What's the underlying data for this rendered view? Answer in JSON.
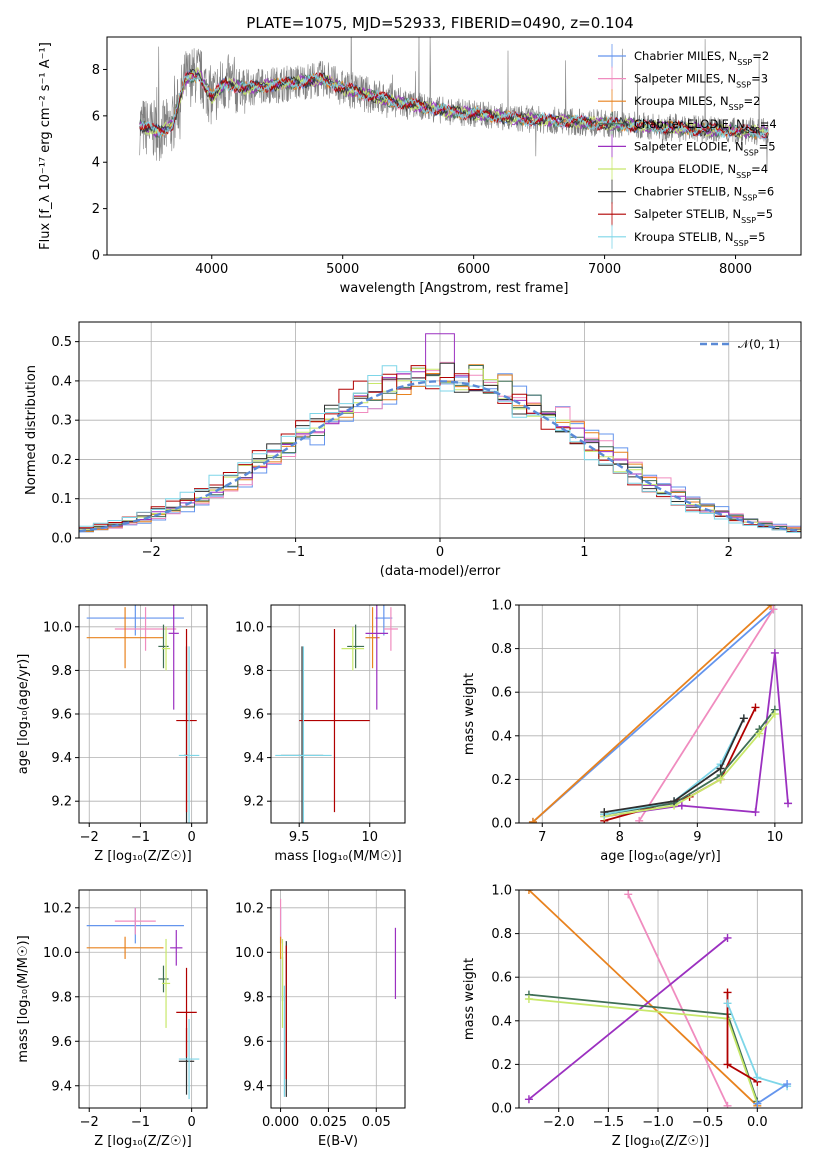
{
  "chart_data": [
    {
      "type": "line",
      "title": "PLATE=1075, MJD=52933, FIBERID=0490, z=0.104",
      "xlabel": "wavelength [Angstrom, rest frame]",
      "ylabel": "Flux [f_λ 10⁻¹⁷ erg cm⁻² s⁻¹ A⁻¹]",
      "xlim": [
        3200,
        8500
      ],
      "ylim": [
        0,
        9.4
      ],
      "xticks": [
        4000,
        5000,
        6000,
        7000,
        8000
      ],
      "yticks": [
        0,
        2,
        4,
        6,
        8
      ],
      "grid": false,
      "legend_position": "upper-right",
      "legend": [
        {
          "label": "Chabrier MILES, N",
          "sub": "SSP",
          "suffix": "=2",
          "color": "#6495ed"
        },
        {
          "label": "Salpeter MILES, N",
          "sub": "SSP",
          "suffix": "=3",
          "color": "#f08cbf"
        },
        {
          "label": "Kroupa MILES, N",
          "sub": "SSP",
          "suffix": "=2",
          "color": "#e8821e"
        },
        {
          "label": "Chabrier ELODIE, N",
          "sub": "SSP",
          "suffix": "=4",
          "color": "#3f6e55"
        },
        {
          "label": "Salpeter ELODIE, N",
          "sub": "SSP",
          "suffix": "=5",
          "color": "#9b30c0"
        },
        {
          "label": "Kroupa ELODIE, N",
          "sub": "SSP",
          "suffix": "=4",
          "color": "#c8e86a"
        },
        {
          "label": "Chabrier STELIB, N",
          "sub": "SSP",
          "suffix": "=6",
          "color": "#2f2f2f"
        },
        {
          "label": "Salpeter STELIB, N",
          "sub": "SSP",
          "suffix": "=5",
          "color": "#b00000"
        },
        {
          "label": "Kroupa STELIB, N",
          "sub": "SSP",
          "suffix": "=5",
          "color": "#7ed6e8"
        }
      ],
      "data_color": "#808080",
      "continuum_points": [
        [
          3450,
          5.6
        ],
        [
          3600,
          5.3
        ],
        [
          3700,
          5.6
        ],
        [
          3800,
          7.6
        ],
        [
          3900,
          7.8
        ],
        [
          4000,
          6.8
        ],
        [
          4100,
          7.4
        ],
        [
          4250,
          7.2
        ],
        [
          4400,
          7.3
        ],
        [
          4600,
          7.4
        ],
        [
          4850,
          7.6
        ],
        [
          5000,
          7.2
        ],
        [
          5200,
          6.9
        ],
        [
          5400,
          6.6
        ],
        [
          5600,
          6.4
        ],
        [
          5800,
          6.2
        ],
        [
          6000,
          6.1
        ],
        [
          6300,
          5.9
        ],
        [
          6600,
          5.8
        ],
        [
          6900,
          5.7
        ],
        [
          7200,
          5.6
        ],
        [
          7500,
          5.5
        ],
        [
          7800,
          5.4
        ],
        [
          8000,
          5.35
        ],
        [
          8250,
          5.3
        ]
      ]
    },
    {
      "type": "histogram",
      "xlabel": "(data-model)/error",
      "ylabel": "Normed distribution",
      "xlim": [
        -2.5,
        2.5
      ],
      "ylim": [
        0,
        0.55
      ],
      "xticks": [
        -2,
        -1,
        0,
        1,
        2
      ],
      "yticks": [
        0.0,
        0.1,
        0.2,
        0.3,
        0.4,
        0.5
      ],
      "grid": true,
      "bin_width": 0.1,
      "reference_curve": {
        "label": "𝒩(0, 1)",
        "color": "#5a8ad6",
        "mean": 0,
        "sigma": 1
      },
      "peak_values": [
        0.45,
        0.42,
        0.46,
        0.44,
        0.52,
        0.43,
        0.45,
        0.41,
        0.43
      ]
    },
    {
      "type": "scatter",
      "xlabel": "Z [log₁₀(Z/Z☉)]",
      "ylabel": "age  [log₁₀(age/yr)]",
      "xlim": [
        -2.2,
        0.3
      ],
      "ylim": [
        9.1,
        10.1
      ],
      "xticks": [
        -2,
        -1,
        0
      ],
      "yticks": [
        9.2,
        9.4,
        9.6,
        9.8,
        10.0
      ],
      "points": [
        {
          "x": -1.1,
          "y": 10.04,
          "xerr": 0.95,
          "yerr": 0.08,
          "color": "#6495ed"
        },
        {
          "x": -0.9,
          "y": 9.99,
          "xerr": 0.6,
          "yerr": 0.1,
          "color": "#f08cbf"
        },
        {
          "x": -1.3,
          "y": 9.95,
          "xerr": 0.75,
          "yerr": 0.14,
          "color": "#e8821e"
        },
        {
          "x": -0.55,
          "y": 9.91,
          "xerr": 0.1,
          "yerr": 0.1,
          "color": "#3f6e55"
        },
        {
          "x": -0.35,
          "y": 9.97,
          "xerr": 0.1,
          "yerr": 0.35,
          "color": "#9b30c0"
        },
        {
          "x": -0.5,
          "y": 9.9,
          "xerr": 0.08,
          "yerr": 0.1,
          "color": "#c8e86a"
        },
        {
          "x": -0.1,
          "y": 9.41,
          "xerr": 0.05,
          "yerr": 0.5,
          "color": "#2f2f2f"
        },
        {
          "x": -0.1,
          "y": 9.57,
          "xerr": 0.2,
          "yerr": 0.42,
          "color": "#b00000"
        },
        {
          "x": -0.05,
          "y": 9.41,
          "xerr": 0.2,
          "yerr": 0.5,
          "color": "#7ed6e8"
        }
      ]
    },
    {
      "type": "scatter",
      "xlabel": "mass [log₁₀(M/M☉)]",
      "ylabel": "",
      "xlim": [
        9.3,
        10.25
      ],
      "ylim": [
        9.1,
        10.1
      ],
      "xticks": [
        9.5,
        10.0
      ],
      "yticks": [
        9.2,
        9.4,
        9.6,
        9.8,
        10.0
      ],
      "points": [
        {
          "x": 10.1,
          "y": 10.04,
          "xerr": 0.06,
          "yerr": 0.08,
          "color": "#6495ed"
        },
        {
          "x": 10.15,
          "y": 9.99,
          "xerr": 0.05,
          "yerr": 0.1,
          "color": "#f08cbf"
        },
        {
          "x": 10.02,
          "y": 9.95,
          "xerr": 0.05,
          "yerr": 0.14,
          "color": "#e8821e"
        },
        {
          "x": 9.9,
          "y": 9.91,
          "xerr": 0.06,
          "yerr": 0.1,
          "color": "#3f6e55"
        },
        {
          "x": 10.05,
          "y": 9.97,
          "xerr": 0.08,
          "yerr": 0.35,
          "color": "#9b30c0"
        },
        {
          "x": 9.88,
          "y": 9.9,
          "xerr": 0.08,
          "yerr": 0.1,
          "color": "#c8e86a"
        },
        {
          "x": 9.52,
          "y": 9.41,
          "xerr": 0.15,
          "yerr": 0.5,
          "color": "#2f2f2f"
        },
        {
          "x": 9.75,
          "y": 9.57,
          "xerr": 0.25,
          "yerr": 0.42,
          "color": "#b00000"
        },
        {
          "x": 9.53,
          "y": 9.41,
          "xerr": 0.2,
          "yerr": 0.5,
          "color": "#7ed6e8"
        }
      ]
    },
    {
      "type": "line",
      "xlabel": "age  [log₁₀(age/yr)]",
      "ylabel": "mass weight",
      "xlim": [
        6.7,
        10.35
      ],
      "ylim": [
        0,
        1.0
      ],
      "xticks": [
        7,
        8,
        9,
        10
      ],
      "yticks": [
        0.0,
        0.2,
        0.4,
        0.6,
        0.8,
        1.0
      ],
      "series": [
        {
          "color": "#6495ed",
          "x": [
            6.88,
            9.98
          ],
          "y": [
            0.005,
            0.98
          ]
        },
        {
          "color": "#e8821e",
          "x": [
            6.88,
            9.95
          ],
          "y": [
            0.005,
            1.0
          ]
        },
        {
          "color": "#f08cbf",
          "x": [
            8.25,
            9.98
          ],
          "y": [
            0.01,
            0.98
          ]
        },
        {
          "color": "#9b30c0",
          "x": [
            7.8,
            8.8,
            9.75,
            10.0,
            10.17
          ],
          "y": [
            0.03,
            0.08,
            0.05,
            0.78,
            0.09
          ]
        },
        {
          "color": "#b00000",
          "x": [
            7.8,
            8.9,
            9.3,
            9.75
          ],
          "y": [
            0.01,
            0.12,
            0.2,
            0.53
          ]
        },
        {
          "color": "#3f6e55",
          "x": [
            7.8,
            8.7,
            9.3,
            9.8,
            10.0
          ],
          "y": [
            0.04,
            0.09,
            0.22,
            0.43,
            0.52
          ]
        },
        {
          "color": "#c8e86a",
          "x": [
            7.8,
            8.7,
            9.3,
            9.8,
            10.0
          ],
          "y": [
            0.03,
            0.08,
            0.2,
            0.41,
            0.5
          ]
        },
        {
          "color": "#7ed6e8",
          "x": [
            7.8,
            8.7,
            9.3,
            9.6
          ],
          "y": [
            0.04,
            0.1,
            0.27,
            0.48
          ]
        },
        {
          "color": "#2f2f2f",
          "x": [
            7.8,
            8.7,
            9.3,
            9.6
          ],
          "y": [
            0.05,
            0.1,
            0.25,
            0.48
          ]
        }
      ]
    },
    {
      "type": "scatter",
      "xlabel": "Z [log₁₀(Z/Z☉)]",
      "ylabel": "mass [log₁₀(M/M☉)]",
      "xlim": [
        -2.2,
        0.3
      ],
      "ylim": [
        9.3,
        10.28
      ],
      "xticks": [
        -2,
        -1,
        0
      ],
      "yticks": [
        9.4,
        9.6,
        9.8,
        10.0,
        10.2
      ],
      "points": [
        {
          "x": -1.1,
          "y": 10.12,
          "xerr": 0.95,
          "yerr": 0.08,
          "color": "#6495ed"
        },
        {
          "x": -1.1,
          "y": 10.14,
          "xerr": 0.4,
          "yerr": 0.06,
          "color": "#f08cbf"
        },
        {
          "x": -1.3,
          "y": 10.02,
          "xerr": 0.75,
          "yerr": 0.05,
          "color": "#e8821e"
        },
        {
          "x": -0.55,
          "y": 9.88,
          "xerr": 0.1,
          "yerr": 0.06,
          "color": "#3f6e55"
        },
        {
          "x": -0.3,
          "y": 10.02,
          "xerr": 0.12,
          "yerr": 0.08,
          "color": "#9b30c0"
        },
        {
          "x": -0.5,
          "y": 9.86,
          "xerr": 0.08,
          "yerr": 0.2,
          "color": "#c8e86a"
        },
        {
          "x": -0.1,
          "y": 9.51,
          "xerr": 0.15,
          "yerr": 0.15,
          "color": "#2f2f2f"
        },
        {
          "x": -0.1,
          "y": 9.73,
          "xerr": 0.2,
          "yerr": 0.2,
          "color": "#b00000"
        },
        {
          "x": -0.05,
          "y": 9.52,
          "xerr": 0.2,
          "yerr": 0.18,
          "color": "#7ed6e8"
        }
      ]
    },
    {
      "type": "scatter",
      "xlabel": "E(B-V)",
      "ylabel": "",
      "xlim": [
        -0.005,
        0.065
      ],
      "ylim": [
        9.3,
        10.28
      ],
      "xticks": [
        0.0,
        0.025,
        0.05
      ],
      "yticks": [
        9.4,
        9.6,
        9.8,
        10.0,
        10.2
      ],
      "points": [
        {
          "x": 0.0,
          "y": 10.12,
          "xerr": 0.0,
          "yerr": 0.08,
          "color": "#6495ed"
        },
        {
          "x": 0.0,
          "y": 10.14,
          "xerr": 0.0,
          "yerr": 0.1,
          "color": "#f08cbf"
        },
        {
          "x": 0.0,
          "y": 10.02,
          "xerr": 0.0,
          "yerr": 0.05,
          "color": "#e8821e"
        },
        {
          "x": 0.001,
          "y": 9.88,
          "xerr": 0.0,
          "yerr": 0.1,
          "color": "#3f6e55"
        },
        {
          "x": 0.06,
          "y": 9.95,
          "xerr": 0.0,
          "yerr": 0.16,
          "color": "#9b30c0"
        },
        {
          "x": 0.001,
          "y": 9.86,
          "xerr": 0.0,
          "yerr": 0.2,
          "color": "#c8e86a"
        },
        {
          "x": 0.003,
          "y": 9.7,
          "xerr": 0.0,
          "yerr": 0.35,
          "color": "#2f2f2f"
        },
        {
          "x": 0.003,
          "y": 9.73,
          "xerr": 0.0,
          "yerr": 0.3,
          "color": "#b00000"
        },
        {
          "x": 0.002,
          "y": 9.6,
          "xerr": 0.0,
          "yerr": 0.25,
          "color": "#7ed6e8"
        }
      ]
    },
    {
      "type": "line",
      "xlabel": "Z [log₁₀(Z/Z☉)]",
      "ylabel": "mass weight",
      "xlim": [
        -2.4,
        0.45
      ],
      "ylim": [
        0,
        1.0
      ],
      "xticks": [
        -2.0,
        -1.5,
        -1.0,
        -0.5,
        0.0
      ],
      "yticks": [
        0.0,
        0.2,
        0.4,
        0.6,
        0.8,
        1.0
      ],
      "series": [
        {
          "color": "#e8821e",
          "x": [
            -2.3,
            0.0
          ],
          "y": [
            1.0,
            0.01
          ]
        },
        {
          "color": "#f08cbf",
          "x": [
            -1.3,
            -0.3
          ],
          "y": [
            0.98,
            0.01
          ]
        },
        {
          "color": "#9b30c0",
          "x": [
            -2.3,
            -0.3
          ],
          "y": [
            0.04,
            0.78
          ]
        },
        {
          "color": "#3f6e55",
          "x": [
            -2.3,
            -0.3,
            0.0
          ],
          "y": [
            0.52,
            0.43,
            0.03
          ]
        },
        {
          "color": "#c8e86a",
          "x": [
            -2.3,
            -0.3,
            0.0
          ],
          "y": [
            0.5,
            0.41,
            0.02
          ]
        },
        {
          "color": "#b00000",
          "x": [
            -0.3,
            -0.3,
            0.0
          ],
          "y": [
            0.53,
            0.2,
            0.12
          ]
        },
        {
          "color": "#7ed6e8",
          "x": [
            -0.3,
            0.0,
            0.3
          ],
          "y": [
            0.48,
            0.14,
            0.1
          ]
        },
        {
          "color": "#6495ed",
          "x": [
            0.0,
            0.3
          ],
          "y": [
            0.02,
            0.11
          ]
        }
      ]
    }
  ]
}
